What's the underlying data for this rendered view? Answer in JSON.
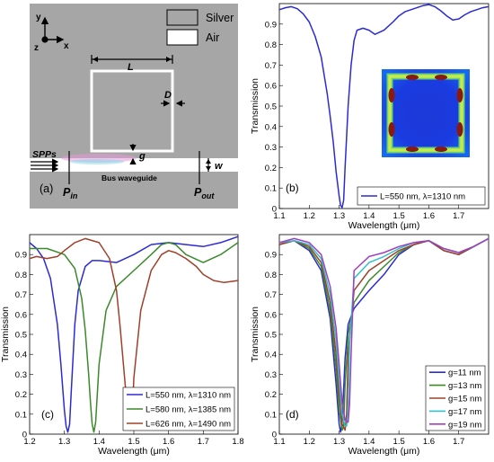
{
  "figure": {
    "schematic": {
      "panel_label": "(a)",
      "legend": [
        {
          "label": "Silver",
          "color": "#a6a6a6"
        },
        {
          "label": "Air",
          "color": "#ffffff"
        }
      ],
      "axes": {
        "y": "y",
        "x": "x",
        "z": "z"
      },
      "labels": {
        "L": "L",
        "D": "D",
        "g": "g",
        "w": "w",
        "spps": "SPPs",
        "p_in": "P",
        "p_in_sub": "in",
        "p_out": "P",
        "p_out_sub": "out",
        "bus": "Bus waveguide"
      },
      "colors": {
        "silver": "#a6a6a6",
        "air": "#ffffff"
      }
    }
  },
  "chart_data": [
    {
      "type": "line",
      "panel_label": "(b)",
      "xlabel": "Wavelength (μm)",
      "ylabel": "Transmission",
      "xlim": [
        1.1,
        1.8
      ],
      "ylim": [
        0,
        1
      ],
      "xticks": [
        "1.1",
        "1.2",
        "1.3",
        "1.4",
        "1.5",
        "1.6",
        "1.7"
      ],
      "yticks": [
        "0",
        "0.1",
        "0.2",
        "0.3",
        "0.4",
        "0.5",
        "0.6",
        "0.7",
        "0.8",
        "0.9"
      ],
      "legend_position": "bottom-right",
      "inset": "field distribution map",
      "series": [
        {
          "name": "L=550 nm, λ=1310 nm",
          "color": "#2b2bd6",
          "x": [
            1.1,
            1.12,
            1.14,
            1.16,
            1.18,
            1.2,
            1.22,
            1.24,
            1.26,
            1.27,
            1.28,
            1.29,
            1.3,
            1.305,
            1.31,
            1.315,
            1.32,
            1.33,
            1.34,
            1.35,
            1.36,
            1.38,
            1.4,
            1.42,
            1.45,
            1.48,
            1.5,
            1.52,
            1.55,
            1.58,
            1.6,
            1.62,
            1.64,
            1.66,
            1.68,
            1.7,
            1.72,
            1.74,
            1.76,
            1.78,
            1.8
          ],
          "y": [
            0.97,
            0.98,
            0.985,
            0.975,
            0.95,
            0.91,
            0.84,
            0.74,
            0.56,
            0.45,
            0.33,
            0.18,
            0.06,
            0.015,
            0.005,
            0.04,
            0.2,
            0.5,
            0.7,
            0.82,
            0.87,
            0.88,
            0.87,
            0.85,
            0.87,
            0.91,
            0.94,
            0.96,
            0.975,
            0.99,
            0.995,
            0.985,
            0.965,
            0.94,
            0.92,
            0.925,
            0.945,
            0.96,
            0.97,
            0.98,
            0.985
          ]
        }
      ]
    },
    {
      "type": "line",
      "panel_label": "(c)",
      "xlabel": "Wavelength (μm)",
      "ylabel": "Transmission",
      "xlim": [
        1.2,
        1.8
      ],
      "ylim": [
        0,
        1
      ],
      "xticks": [
        "1.2",
        "1.3",
        "1.4",
        "1.5",
        "1.6",
        "1.7",
        "1.8"
      ],
      "yticks": [
        "0",
        "0.1",
        "0.2",
        "0.3",
        "0.4",
        "0.5",
        "0.6",
        "0.7",
        "0.8",
        "0.9"
      ],
      "legend_position": "bottom-right",
      "series": [
        {
          "name": "L=550 nm, λ=1310 nm",
          "color": "#2b2bd6",
          "x": [
            1.2,
            1.22,
            1.24,
            1.26,
            1.28,
            1.29,
            1.3,
            1.305,
            1.31,
            1.315,
            1.32,
            1.33,
            1.34,
            1.36,
            1.38,
            1.4,
            1.45,
            1.5,
            1.55,
            1.6,
            1.65,
            1.7,
            1.75,
            1.8
          ],
          "y": [
            0.96,
            0.93,
            0.88,
            0.78,
            0.55,
            0.35,
            0.12,
            0.04,
            0.01,
            0.05,
            0.22,
            0.55,
            0.72,
            0.84,
            0.87,
            0.87,
            0.86,
            0.9,
            0.95,
            0.96,
            0.95,
            0.94,
            0.96,
            0.99
          ]
        },
        {
          "name": "L=580 nm, λ=1385 nm",
          "color": "#3a8a2a",
          "x": [
            1.2,
            1.25,
            1.3,
            1.33,
            1.35,
            1.36,
            1.37,
            1.375,
            1.38,
            1.385,
            1.39,
            1.4,
            1.42,
            1.45,
            1.5,
            1.55,
            1.58,
            1.6,
            1.62,
            1.65,
            1.7,
            1.75,
            1.8
          ],
          "y": [
            0.93,
            0.93,
            0.9,
            0.83,
            0.68,
            0.52,
            0.3,
            0.16,
            0.05,
            0.01,
            0.06,
            0.35,
            0.62,
            0.74,
            0.82,
            0.9,
            0.95,
            0.96,
            0.95,
            0.9,
            0.86,
            0.9,
            0.96
          ]
        },
        {
          "name": "L=626 nm, λ=1490 nm",
          "color": "#a0402a",
          "x": [
            1.2,
            1.22,
            1.25,
            1.28,
            1.3,
            1.33,
            1.36,
            1.4,
            1.43,
            1.45,
            1.46,
            1.47,
            1.48,
            1.485,
            1.49,
            1.495,
            1.5,
            1.52,
            1.55,
            1.58,
            1.6,
            1.62,
            1.65,
            1.68,
            1.7,
            1.73,
            1.76,
            1.8
          ],
          "y": [
            0.88,
            0.89,
            0.88,
            0.89,
            0.92,
            0.96,
            0.98,
            0.96,
            0.88,
            0.72,
            0.55,
            0.35,
            0.15,
            0.06,
            0.02,
            0.07,
            0.28,
            0.62,
            0.82,
            0.9,
            0.92,
            0.91,
            0.88,
            0.84,
            0.8,
            0.77,
            0.76,
            0.77
          ]
        }
      ]
    },
    {
      "type": "line",
      "panel_label": "(d)",
      "xlabel": "Wavelength (μm)",
      "ylabel": "Transmission",
      "xlim": [
        1.1,
        1.8
      ],
      "ylim": [
        0,
        1
      ],
      "xticks": [
        "1.1",
        "1.2",
        "1.3",
        "1.4",
        "1.5",
        "1.6",
        "1.7"
      ],
      "yticks": [
        "0",
        "0.1",
        "0.2",
        "0.3",
        "0.4",
        "0.5",
        "0.6",
        "0.7",
        "0.8",
        "0.9"
      ],
      "legend_position": "bottom-right",
      "series": [
        {
          "name": "g=11 nm",
          "color": "#2b2bd6",
          "x": [
            1.1,
            1.15,
            1.2,
            1.24,
            1.27,
            1.29,
            1.3,
            1.305,
            1.31,
            1.32,
            1.33,
            1.35,
            1.4,
            1.45,
            1.5,
            1.55,
            1.6,
            1.65,
            1.7,
            1.75,
            1.8
          ],
          "y": [
            0.95,
            0.97,
            0.92,
            0.82,
            0.58,
            0.25,
            0.05,
            0.01,
            0.06,
            0.38,
            0.55,
            0.63,
            0.72,
            0.8,
            0.9,
            0.95,
            0.97,
            0.92,
            0.9,
            0.94,
            0.98
          ]
        },
        {
          "name": "g=13 nm",
          "color": "#3a8a2a",
          "x": [
            1.1,
            1.15,
            1.2,
            1.24,
            1.27,
            1.29,
            1.3,
            1.31,
            1.315,
            1.32,
            1.33,
            1.35,
            1.4,
            1.45,
            1.5,
            1.55,
            1.6,
            1.65,
            1.7,
            1.75,
            1.8
          ],
          "y": [
            0.95,
            0.97,
            0.93,
            0.84,
            0.62,
            0.33,
            0.12,
            0.02,
            0.04,
            0.25,
            0.5,
            0.66,
            0.77,
            0.84,
            0.91,
            0.95,
            0.97,
            0.92,
            0.9,
            0.94,
            0.98
          ]
        },
        {
          "name": "g=15 nm",
          "color": "#a0402a",
          "x": [
            1.1,
            1.15,
            1.2,
            1.24,
            1.27,
            1.29,
            1.3,
            1.31,
            1.32,
            1.325,
            1.33,
            1.35,
            1.4,
            1.45,
            1.5,
            1.55,
            1.6,
            1.65,
            1.7,
            1.75,
            1.8
          ],
          "y": [
            0.95,
            0.97,
            0.94,
            0.86,
            0.66,
            0.4,
            0.2,
            0.05,
            0.02,
            0.1,
            0.4,
            0.72,
            0.82,
            0.87,
            0.92,
            0.95,
            0.97,
            0.92,
            0.9,
            0.94,
            0.98
          ]
        },
        {
          "name": "g=17 nm",
          "color": "#33c0c8",
          "x": [
            1.1,
            1.15,
            1.2,
            1.24,
            1.27,
            1.29,
            1.3,
            1.31,
            1.32,
            1.325,
            1.33,
            1.335,
            1.35,
            1.4,
            1.45,
            1.5,
            1.55,
            1.6,
            1.65,
            1.7,
            1.75,
            1.8
          ],
          "y": [
            0.96,
            0.97,
            0.95,
            0.88,
            0.7,
            0.47,
            0.27,
            0.1,
            0.04,
            0.04,
            0.12,
            0.45,
            0.78,
            0.86,
            0.89,
            0.93,
            0.96,
            0.97,
            0.93,
            0.91,
            0.94,
            0.98
          ]
        },
        {
          "name": "g=19 nm",
          "color": "#a040c0",
          "x": [
            1.1,
            1.15,
            1.2,
            1.24,
            1.27,
            1.29,
            1.3,
            1.31,
            1.32,
            1.33,
            1.335,
            1.34,
            1.35,
            1.4,
            1.45,
            1.5,
            1.55,
            1.6,
            1.65,
            1.7,
            1.75,
            1.8
          ],
          "y": [
            0.96,
            0.98,
            0.96,
            0.9,
            0.74,
            0.53,
            0.35,
            0.16,
            0.07,
            0.06,
            0.15,
            0.4,
            0.82,
            0.89,
            0.91,
            0.94,
            0.96,
            0.97,
            0.93,
            0.91,
            0.94,
            0.98
          ]
        }
      ]
    }
  ]
}
